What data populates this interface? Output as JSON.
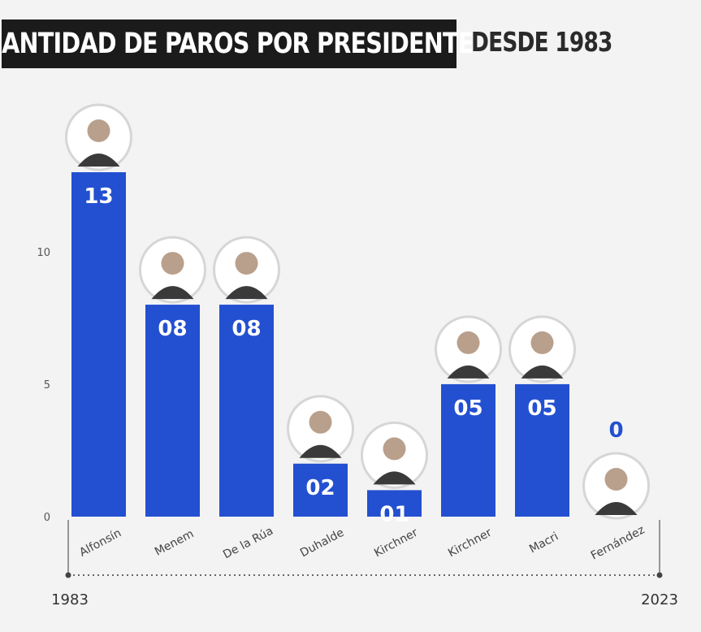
{
  "title": "CANTIDAD DE PAROS POR PRESIDENTE",
  "subtitle": "DESDE 1983",
  "colors": {
    "bar": "#2350d0",
    "title_bg": "#1b1b1b",
    "background": "#f3f3f3"
  },
  "chart_data": {
    "type": "bar",
    "categories": [
      "Alfonsín",
      "Menem",
      "De la Rúa",
      "Duhalde",
      "Kirchner",
      "Kirchner",
      "Macri",
      "Fernández"
    ],
    "values": [
      13,
      8,
      8,
      2,
      1,
      5,
      5,
      0
    ],
    "value_labels": [
      "13",
      "08",
      "08",
      "02",
      "01",
      "05",
      "05",
      "0"
    ],
    "ylim": [
      0,
      13
    ],
    "yticks": [
      0,
      5,
      10
    ],
    "grid": false,
    "timeline": {
      "start": "1983",
      "end": "2023"
    }
  }
}
